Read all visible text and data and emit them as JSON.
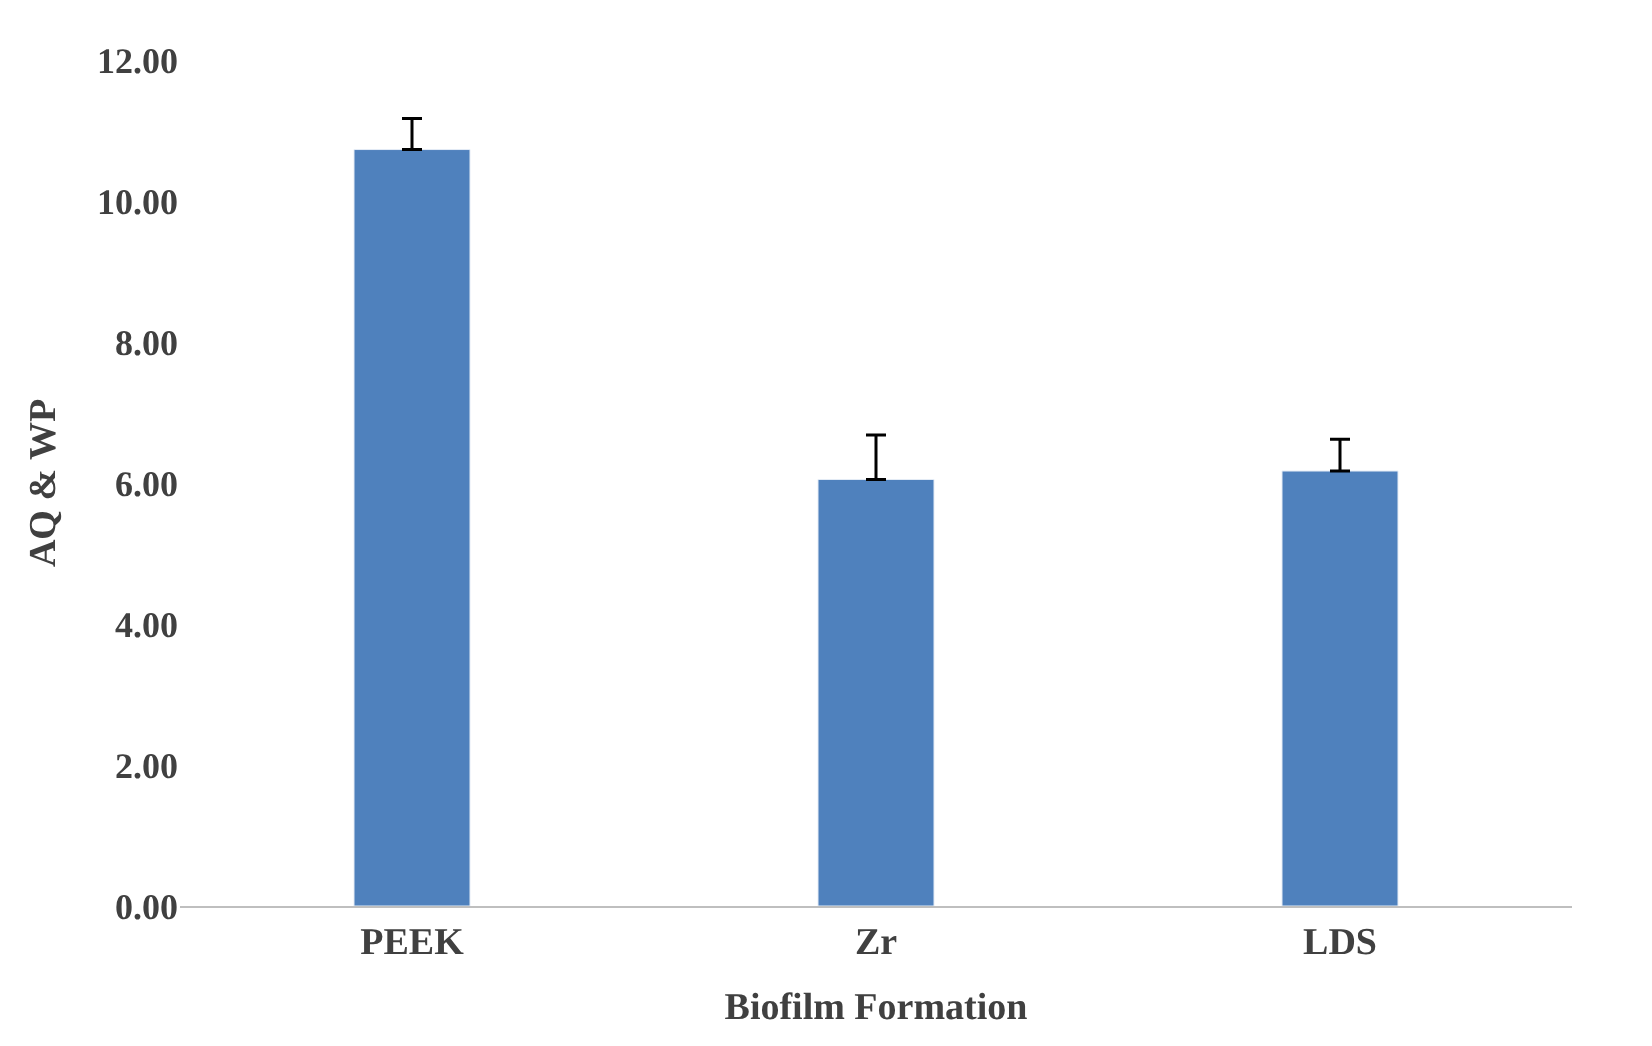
{
  "chart_data": {
    "type": "bar",
    "xlabel": "Biofilm Formation",
    "ylabel": "AQ & WP",
    "categories": [
      "PEEK",
      "Zr",
      "LDS"
    ],
    "values": [
      10.73,
      6.05,
      6.17
    ],
    "errors": [
      [
        10.73,
        11.17
      ],
      [
        6.05,
        6.68
      ],
      [
        6.17,
        6.62
      ]
    ],
    "color": "#4f81bd",
    "ylim": [
      0,
      12
    ],
    "yticks": [
      {
        "value": 0,
        "label": "0.00"
      },
      {
        "value": 2,
        "label": "2.00"
      },
      {
        "value": 4,
        "label": "4.00"
      },
      {
        "value": 6,
        "label": "6.00"
      },
      {
        "value": 8,
        "label": "8.00"
      },
      {
        "value": 10,
        "label": "10.00"
      },
      {
        "value": 12,
        "label": "12.00"
      }
    ],
    "legend": false
  }
}
